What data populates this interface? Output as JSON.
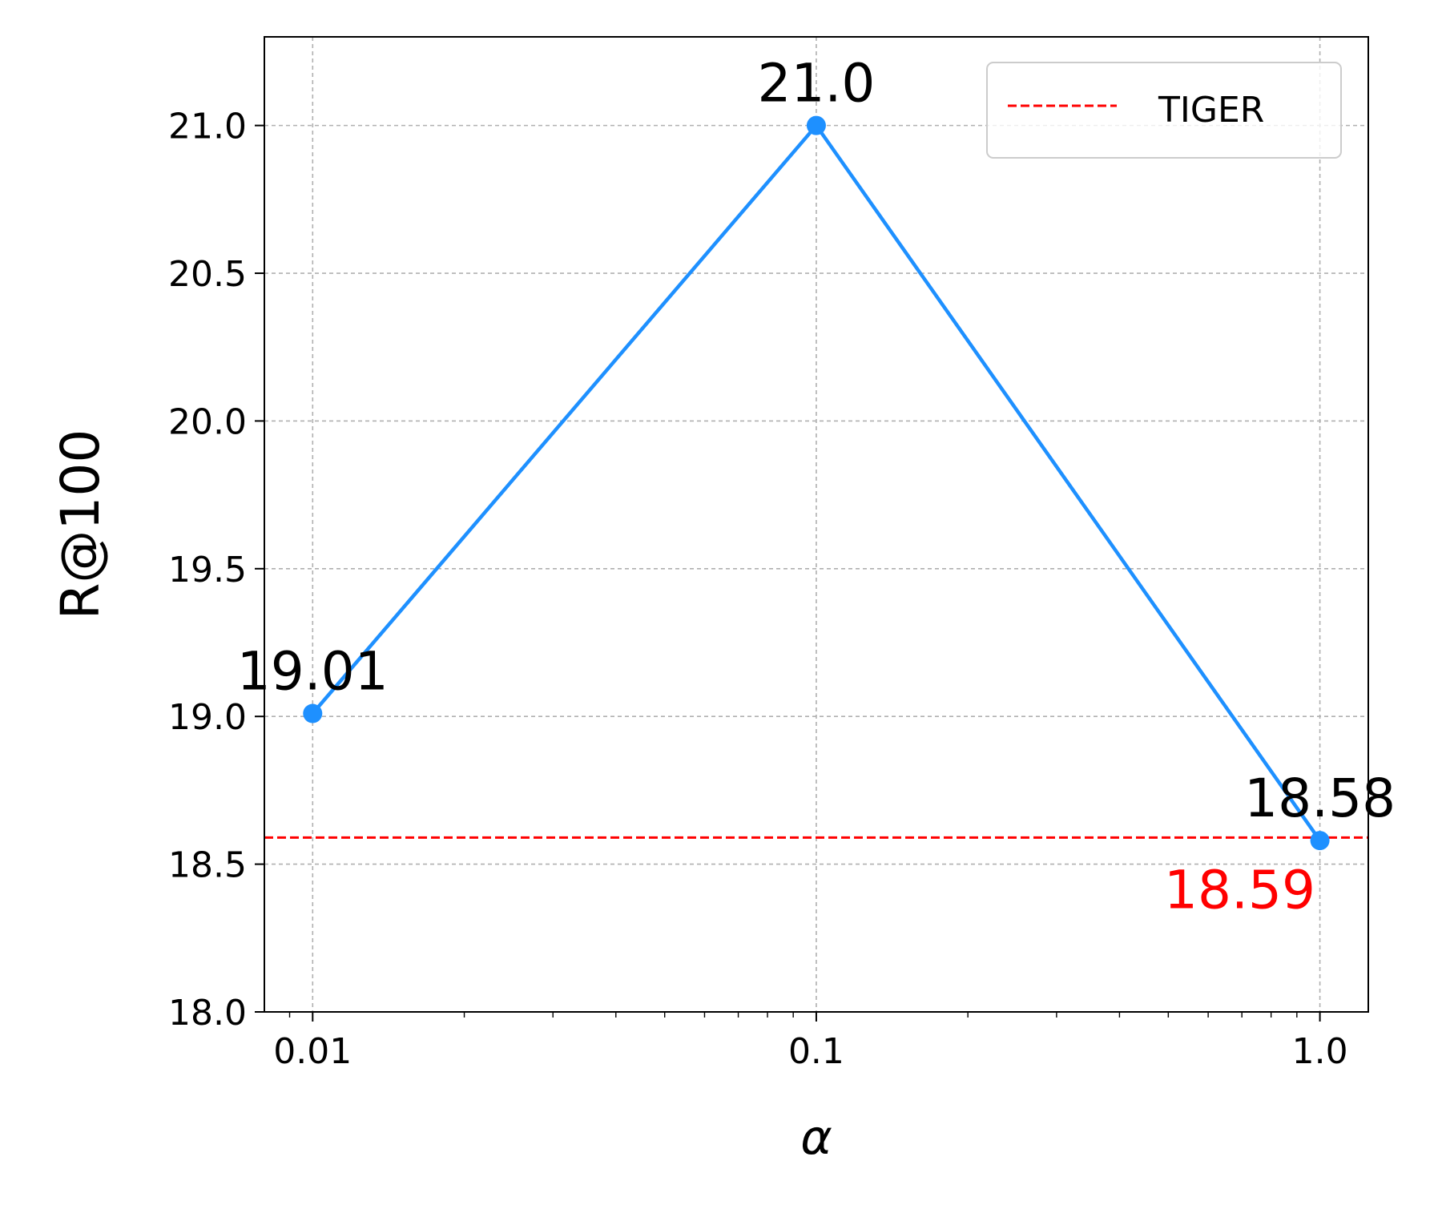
{
  "chart_data": {
    "type": "line",
    "title": "",
    "xlabel": "α",
    "ylabel": "R@100",
    "xscale": "log",
    "x": [
      0.01,
      0.1,
      1.0
    ],
    "x_tick_labels": [
      "0.01",
      "0.1",
      "1.0"
    ],
    "ylim": [
      18.0,
      21.3
    ],
    "y_ticks": [
      18.0,
      18.5,
      19.0,
      19.5,
      20.0,
      20.5,
      21.0
    ],
    "y_tick_labels": [
      "18.0",
      "18.5",
      "19.0",
      "19.5",
      "20.0",
      "20.5",
      "21.0"
    ],
    "grid": true,
    "legend_position": "top-right",
    "series": [
      {
        "values": [
          19.01,
          21.0,
          18.58
        ],
        "point_labels": [
          "19.01",
          "21.0",
          "18.58"
        ],
        "color": "#1e90ff"
      }
    ],
    "baseline": {
      "name": "TIGER",
      "value": 18.59,
      "label": "18.59",
      "color": "#ff0000",
      "style": "dashed"
    }
  }
}
